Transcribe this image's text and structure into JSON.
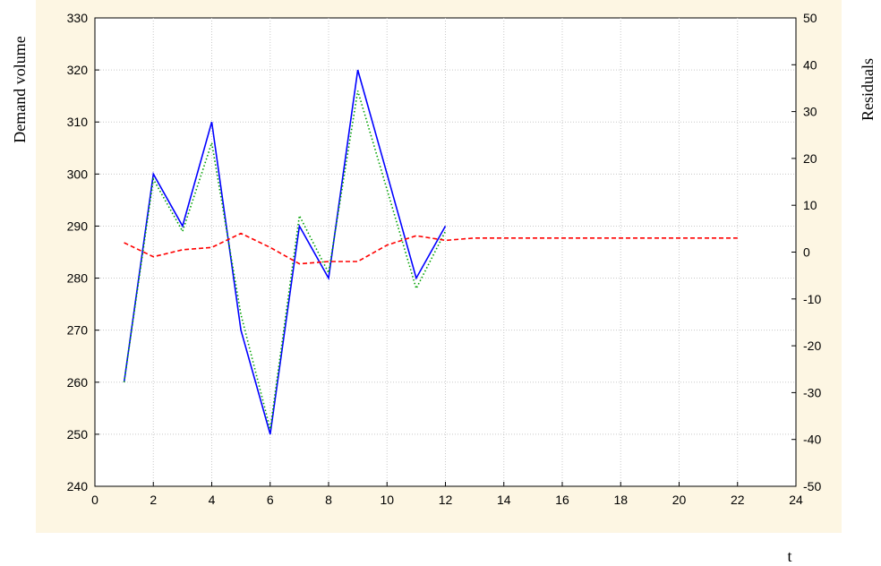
{
  "chart_data": {
    "type": "line",
    "title": "",
    "xlabel": "t",
    "ylabel": "Demand volume",
    "y2label": "Residuals",
    "xlim": [
      0,
      24
    ],
    "ylim": [
      240,
      330
    ],
    "y2lim": [
      -50,
      50
    ],
    "x_ticks": [
      "0",
      "2",
      "4",
      "6",
      "8",
      "10",
      "12",
      "14",
      "16",
      "18",
      "20",
      "22",
      "24"
    ],
    "y_ticks": [
      "240",
      "250",
      "260",
      "270",
      "280",
      "290",
      "300",
      "310",
      "320",
      "330"
    ],
    "y2_ticks": [
      "-50",
      "-40",
      "-30",
      "-20",
      "-10",
      "0",
      "10",
      "20",
      "30",
      "40",
      "50"
    ],
    "grid": true,
    "series": [
      {
        "axis": "left",
        "color": "#0000ff",
        "style": "solid",
        "x": [
          1,
          2,
          3,
          4,
          5,
          6,
          7,
          8,
          9,
          10,
          11,
          12
        ],
        "y": [
          260,
          300,
          290,
          310,
          270,
          250,
          290,
          280,
          320,
          300,
          280,
          290
        ]
      },
      {
        "axis": "left",
        "color": "#00a000",
        "style": "dotted",
        "x": [
          1,
          2,
          3,
          4,
          5,
          6,
          7,
          8,
          9,
          10,
          11,
          12
        ],
        "y": [
          260,
          299,
          289,
          306,
          273,
          251,
          292,
          281,
          316,
          297,
          278,
          289
        ]
      },
      {
        "axis": "right",
        "color": "#ff0000",
        "style": "dashed",
        "x": [
          1,
          2,
          3,
          4,
          5,
          6,
          7,
          8,
          9,
          10,
          11,
          12,
          13,
          14,
          15,
          16,
          17,
          18,
          19,
          20,
          21,
          22
        ],
        "y": [
          2,
          -1,
          0.5,
          1,
          4,
          1,
          -2.5,
          -2,
          -2,
          1.5,
          3.5,
          2.5,
          3,
          3,
          3,
          3,
          3,
          3,
          3,
          3,
          3,
          3
        ]
      }
    ]
  },
  "colors": {
    "background": "#fdf6e3",
    "plot_area": "#ffffff",
    "grid": "#c8c8c8"
  }
}
